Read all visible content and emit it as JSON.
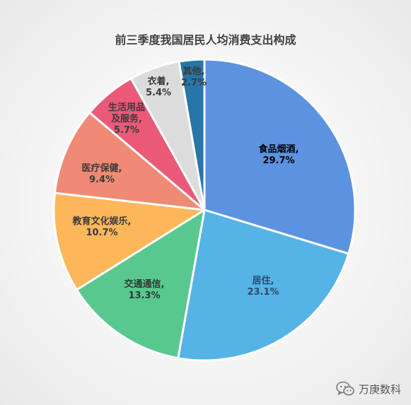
{
  "title": "前三季度我国居民人均消费支出构成",
  "watermark": {
    "icon": "wechat-icon",
    "text": "万庚数科"
  },
  "chart_data": {
    "type": "pie",
    "title": "前三季度我国居民人均消费支出构成",
    "start": "12 o'clock, clockwise",
    "slices": [
      {
        "category": "食品烟酒",
        "value": 29.7,
        "color": "#5B93E0",
        "label_color": "#000000",
        "label_lines": [
          "食品烟酒,",
          "29.7%"
        ]
      },
      {
        "category": "居住",
        "value": 23.1,
        "color": "#55B3E6",
        "label_color": "#2B4A6B",
        "label_lines": [
          "居住,",
          "23.1%"
        ]
      },
      {
        "category": "交通通信",
        "value": 13.3,
        "color": "#58C88F",
        "label_color": "#2A3B36",
        "label_lines": [
          "交通通信,",
          "13.3%"
        ]
      },
      {
        "category": "教育文化娱乐",
        "value": 10.7,
        "color": "#FCB75A",
        "label_color": "#3A3A3A",
        "label_lines": [
          "教育文化娱乐,",
          "10.7%"
        ]
      },
      {
        "category": "医疗保健",
        "value": 9.4,
        "color": "#EF8A75",
        "label_color": "#3A3A3A",
        "label_lines": [
          "医疗保健,",
          "9.4%"
        ]
      },
      {
        "category": "生活用品及服务",
        "value": 5.7,
        "color": "#EA5A78",
        "label_color": "#3A3A3A",
        "label_lines": [
          "生活用品",
          "及服务,",
          "5.7%"
        ]
      },
      {
        "category": "衣着",
        "value": 5.4,
        "color": "#DCDCDC",
        "label_color": "#3A3A3A",
        "label_lines": [
          "衣着,",
          "5.4%"
        ]
      },
      {
        "category": "其他",
        "value": 2.7,
        "color": "#2676A7",
        "label_color": "#3A3A3A",
        "label_lines": [
          "其他,",
          "2.7%"
        ]
      }
    ]
  }
}
